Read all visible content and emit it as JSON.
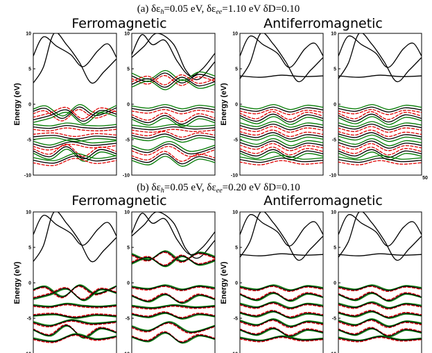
{
  "panels": [
    {
      "id": "a",
      "title_prefix": "(a) δε",
      "title_sub1": "h",
      "title_mid": "=0.05 eV, δε",
      "title_sub2": "ee",
      "title_suffix": "=1.10 eV δD=0.10",
      "group_left_title": "Ferromagnetic",
      "group_right_title": "Antiferromagnetic",
      "extra_tick": "50",
      "mismatch": "large"
    },
    {
      "id": "b",
      "title_prefix": "(b) δε",
      "title_sub1": "h",
      "title_mid": "=0.05 eV, δε",
      "title_sub2": "ee",
      "title_suffix": "=0.20 eV δD=0.10",
      "group_left_title": "Ferromagnetic",
      "group_right_title": "Antiferromagnetic",
      "extra_tick": "",
      "mismatch": "small"
    }
  ],
  "axis": {
    "ylabel": "Energy (eV)",
    "yticks": [
      "10",
      "5",
      "0",
      "-5",
      "-10"
    ]
  },
  "colors": {
    "reference": "#000000",
    "fit_solid": "#007a00",
    "fit_dashed": "#e00000"
  },
  "chart_data": {
    "type": "line",
    "description_free": true,
    "ylim": [
      -10,
      10
    ],
    "ylabel": "Energy (eV)",
    "xlim": [
      0,
      1
    ],
    "panels": [
      {
        "panel": "(a) δε_h=0.05 eV, δε_ee=1.10 eV δD=0.10",
        "plots": [
          {
            "group": "Ferromagnetic",
            "spin": "up",
            "conduction": [
              {
                "x": [
                  0,
                  0.12,
                  0.28,
                  0.45,
                  0.6,
                  0.78,
                  0.9,
                  1
                ],
                "y": [
                  6.8,
                  9.5,
                  8.2,
                  7.0,
                  5.3,
                  7.6,
                  8.5,
                  6.6
                ]
              },
              {
                "x": [
                  0,
                  0.12,
                  0.25,
                  0.4,
                  0.55,
                  0.7,
                  0.85,
                  1
                ],
                "y": [
                  3.0,
                  5.2,
                  10.0,
                  8.4,
                  6.0,
                  3.0,
                  4.6,
                  6.4
                ]
              }
            ],
            "valence": [
              {
                "x": [
                  0,
                  0.15,
                  0.35,
                  0.55,
                  0.75,
                  1
                ],
                "y": [
                  -1.0,
                  -0.6,
                  -2.0,
                  -0.4,
                  -1.6,
                  -0.5
                ]
              },
              {
                "x": [
                  0,
                  0.2,
                  0.4,
                  0.6,
                  0.8,
                  1
                ],
                "y": [
                  -2.2,
                  -1.6,
                  -0.8,
                  -2.4,
                  -0.9,
                  -1.4
                ]
              },
              {
                "x": [
                  0,
                  0.2,
                  0.4,
                  0.6,
                  0.8,
                  1
                ],
                "y": [
                  -3.2,
                  -3.4,
                  -3.0,
                  -3.3,
                  -3.4,
                  -3.2
                ]
              },
              {
                "x": [
                  0,
                  0.25,
                  0.5,
                  0.75,
                  1
                ],
                "y": [
                  -4.6,
                  -4.4,
                  -4.9,
                  -4.5,
                  -4.7
                ]
              },
              {
                "x": [
                  0,
                  0.2,
                  0.45,
                  0.7,
                  1
                ],
                "y": [
                  -5.6,
                  -6.1,
                  -5.3,
                  -5.8,
                  -5.5
                ]
              },
              {
                "x": [
                  0,
                  0.2,
                  0.4,
                  0.6,
                  0.8,
                  1
                ],
                "y": [
                  -6.6,
                  -7.4,
                  -6.0,
                  -7.7,
                  -6.4,
                  -7.0
                ]
              },
              {
                "x": [
                  0,
                  0.25,
                  0.5,
                  0.75,
                  1
                ],
                "y": [
                  -7.9,
                  -8.3,
                  -7.3,
                  -8.0,
                  -7.6
                ]
              }
            ]
          },
          {
            "group": "Ferromagnetic",
            "spin": "down",
            "conduction": [
              {
                "x": [
                  0,
                  0.12,
                  0.25,
                  0.4,
                  0.55,
                  0.7,
                  0.85,
                  1
                ],
                "y": [
                  7.0,
                  9.8,
                  8.4,
                  9.0,
                  6.0,
                  4.0,
                  5.0,
                  7.2
                ]
              },
              {
                "x": [
                  0,
                  0.15,
                  0.3,
                  0.5,
                  0.65,
                  0.8,
                  1
                ],
                "y": [
                  6.6,
                  8.2,
                  10.0,
                  8.5,
                  4.8,
                  3.5,
                  6.0
                ]
              }
            ],
            "valence": [
              {
                "x": [
                  0,
                  0.2,
                  0.4,
                  0.6,
                  0.8,
                  1
                ],
                "y": [
                  4.0,
                  3.2,
                  4.4,
                  3.0,
                  4.2,
                  3.6
                ]
              },
              {
                "x": [
                  0,
                  0.2,
                  0.4,
                  0.6,
                  0.8,
                  1
                ],
                "y": [
                  2.8,
                  3.6,
                  2.4,
                  3.8,
                  2.6,
                  3.2
                ]
              },
              {
                "x": [
                  0,
                  0.2,
                  0.4,
                  0.6,
                  0.8,
                  1
                ],
                "y": [
                  -0.6,
                  -0.9,
                  -0.4,
                  -1.0,
                  -0.5,
                  -0.8
                ]
              },
              {
                "x": [
                  0,
                  0.2,
                  0.4,
                  0.6,
                  0.8,
                  1
                ],
                "y": [
                  -1.8,
                  -2.6,
                  -1.6,
                  -2.8,
                  -1.7,
                  -2.3
                ]
              },
              {
                "x": [
                  0,
                  0.25,
                  0.5,
                  0.75,
                  1
                ],
                "y": [
                  -3.3,
                  -3.6,
                  -3.2,
                  -3.5,
                  -3.3
                ]
              },
              {
                "x": [
                  0,
                  0.2,
                  0.4,
                  0.6,
                  0.8,
                  1
                ],
                "y": [
                  -4.4,
                  -4.8,
                  -4.2,
                  -5.0,
                  -4.4,
                  -4.7
                ]
              },
              {
                "x": [
                  0,
                  0.2,
                  0.45,
                  0.7,
                  1
                ],
                "y": [
                  -6.2,
                  -6.8,
                  -5.6,
                  -7.0,
                  -6.1
                ]
              },
              {
                "x": [
                  0,
                  0.2,
                  0.4,
                  0.6,
                  0.8,
                  1
                ],
                "y": [
                  -7.6,
                  -8.2,
                  -7.0,
                  -8.4,
                  -7.4,
                  -7.9
                ]
              }
            ]
          },
          {
            "group": "Antiferromagnetic",
            "spin": "up",
            "conduction": [
              {
                "x": [
                  0,
                  0.12,
                  0.28,
                  0.45,
                  0.6,
                  0.78,
                  0.9,
                  1
                ],
                "y": [
                  6.8,
                  9.6,
                  8.4,
                  7.2,
                  5.2,
                  7.8,
                  8.6,
                  6.8
                ]
              },
              {
                "x": [
                  0,
                  0.12,
                  0.25,
                  0.4,
                  0.55,
                  0.7,
                  0.85,
                  1
                ],
                "y": [
                  3.6,
                  5.8,
                  10.0,
                  8.5,
                  6.0,
                  3.2,
                  4.8,
                  6.6
                ]
              },
              {
                "x": [
                  0,
                  0.25,
                  0.5,
                  0.75,
                  1
                ],
                "y": [
                  4.0,
                  3.8,
                  4.1,
                  3.9,
                  4.0
                ]
              }
            ],
            "valence": [
              {
                "x": [
                  0,
                  0.2,
                  0.4,
                  0.6,
                  0.8,
                  1
                ],
                "y": [
                  -0.6,
                  -1.0,
                  -0.4,
                  -1.1,
                  -0.5,
                  -0.8
                ]
              },
              {
                "x": [
                  0,
                  0.2,
                  0.4,
                  0.6,
                  0.8,
                  1
                ],
                "y": [
                  -1.6,
                  -2.4,
                  -1.4,
                  -2.5,
                  -1.5,
                  -2.0
                ]
              },
              {
                "x": [
                  0,
                  0.2,
                  0.4,
                  0.6,
                  0.8,
                  1
                ],
                "y": [
                  -3.0,
                  -3.5,
                  -2.8,
                  -3.6,
                  -3.0,
                  -3.3
                ]
              },
              {
                "x": [
                  0,
                  0.2,
                  0.4,
                  0.6,
                  0.8,
                  1
                ],
                "y": [
                  -4.2,
                  -4.7,
                  -4.0,
                  -4.9,
                  -4.3,
                  -4.6
                ]
              },
              {
                "x": [
                  0,
                  0.2,
                  0.4,
                  0.6,
                  0.8,
                  1
                ],
                "y": [
                  -5.4,
                  -6.0,
                  -5.2,
                  -6.2,
                  -5.5,
                  -5.8
                ]
              },
              {
                "x": [
                  0,
                  0.2,
                  0.4,
                  0.6,
                  0.8,
                  1
                ],
                "y": [
                  -6.6,
                  -7.3,
                  -6.4,
                  -7.5,
                  -6.6,
                  -7.0
                ]
              },
              {
                "x": [
                  0,
                  0.25,
                  0.5,
                  0.75,
                  1
                ],
                "y": [
                  -7.8,
                  -8.2,
                  -7.6,
                  -8.1,
                  -7.9
                ]
              }
            ]
          },
          {
            "group": "Antiferromagnetic",
            "spin": "down",
            "conduction": [
              {
                "x": [
                  0,
                  0.12,
                  0.28,
                  0.45,
                  0.6,
                  0.78,
                  0.9,
                  1
                ],
                "y": [
                  6.8,
                  9.6,
                  8.4,
                  7.2,
                  5.2,
                  7.8,
                  8.6,
                  6.8
                ]
              },
              {
                "x": [
                  0,
                  0.12,
                  0.25,
                  0.4,
                  0.55,
                  0.7,
                  0.85,
                  1
                ],
                "y": [
                  3.6,
                  5.8,
                  10.0,
                  8.5,
                  6.0,
                  3.2,
                  4.8,
                  6.6
                ]
              },
              {
                "x": [
                  0,
                  0.25,
                  0.5,
                  0.75,
                  1
                ],
                "y": [
                  4.0,
                  3.8,
                  4.1,
                  3.9,
                  4.0
                ]
              }
            ],
            "valence": [
              {
                "x": [
                  0,
                  0.2,
                  0.4,
                  0.6,
                  0.8,
                  1
                ],
                "y": [
                  -0.6,
                  -1.0,
                  -0.4,
                  -1.1,
                  -0.5,
                  -0.8
                ]
              },
              {
                "x": [
                  0,
                  0.2,
                  0.4,
                  0.6,
                  0.8,
                  1
                ],
                "y": [
                  -1.6,
                  -2.4,
                  -1.4,
                  -2.5,
                  -1.5,
                  -2.0
                ]
              },
              {
                "x": [
                  0,
                  0.2,
                  0.4,
                  0.6,
                  0.8,
                  1
                ],
                "y": [
                  -3.0,
                  -3.5,
                  -2.8,
                  -3.6,
                  -3.0,
                  -3.3
                ]
              },
              {
                "x": [
                  0,
                  0.2,
                  0.4,
                  0.6,
                  0.8,
                  1
                ],
                "y": [
                  -4.2,
                  -4.7,
                  -4.0,
                  -4.9,
                  -4.3,
                  -4.6
                ]
              },
              {
                "x": [
                  0,
                  0.2,
                  0.4,
                  0.6,
                  0.8,
                  1
                ],
                "y": [
                  -5.4,
                  -6.0,
                  -5.2,
                  -6.2,
                  -5.5,
                  -5.8
                ]
              },
              {
                "x": [
                  0,
                  0.2,
                  0.4,
                  0.6,
                  0.8,
                  1
                ],
                "y": [
                  -6.6,
                  -7.3,
                  -6.4,
                  -7.5,
                  -6.6,
                  -7.0
                ]
              },
              {
                "x": [
                  0,
                  0.25,
                  0.5,
                  0.75,
                  1
                ],
                "y": [
                  -7.8,
                  -8.2,
                  -7.6,
                  -8.1,
                  -7.9
                ]
              }
            ]
          }
        ]
      },
      {
        "panel": "(b) δε_h=0.05 eV, δε_ee=0.20 eV δD=0.10",
        "same_band_structure_as": "(a)"
      }
    ]
  }
}
